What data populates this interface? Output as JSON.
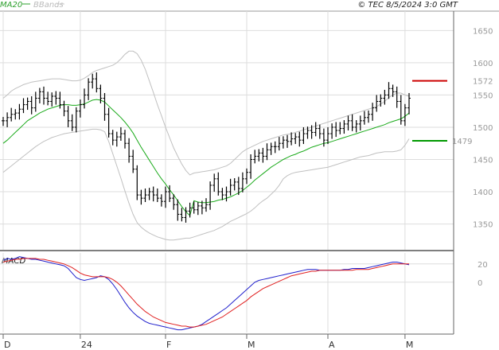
{
  "header": {
    "legend": [
      {
        "label": "MA20",
        "color": "#2ca02c"
      },
      {
        "label": "BBands",
        "color": "#bbbbbb"
      }
    ],
    "copyright": "© TEC 8/5/2024 3:0 GMT"
  },
  "colors": {
    "price": "#000000",
    "ma20": "#1aaa1a",
    "bbands": "#c0c0c0",
    "macd": "#1f1fcc",
    "signal": "#e02020",
    "resistance": "#cc0000",
    "support": "#009900",
    "grid": "#dddddd"
  },
  "chart_data": [
    {
      "type": "ohlc",
      "panel": "price",
      "x_ticks": [
        {
          "label": "D",
          "index": 0
        },
        {
          "label": "24",
          "index": 19
        },
        {
          "label": "F",
          "index": 40
        },
        {
          "label": "M",
          "index": 60
        },
        {
          "label": "A",
          "index": 80
        },
        {
          "label": "M",
          "index": 99
        }
      ],
      "y_ticks": [
        1350,
        1400,
        1450,
        1500,
        1550,
        1600,
        1650
      ],
      "ylim": [
        1310,
        1680
      ],
      "closes": [
        1510,
        1515,
        1520,
        1522,
        1528,
        1535,
        1540,
        1530,
        1545,
        1555,
        1545,
        1540,
        1548,
        1545,
        1535,
        1525,
        1510,
        1500,
        1525,
        1535,
        1550,
        1570,
        1575,
        1560,
        1545,
        1520,
        1490,
        1480,
        1485,
        1490,
        1475,
        1455,
        1435,
        1395,
        1390,
        1395,
        1400,
        1395,
        1390,
        1385,
        1400,
        1390,
        1380,
        1365,
        1360,
        1370,
        1375,
        1372,
        1378,
        1375,
        1380,
        1410,
        1420,
        1400,
        1395,
        1400,
        1410,
        1415,
        1405,
        1420,
        1430,
        1450,
        1455,
        1460,
        1455,
        1465,
        1470,
        1470,
        1475,
        1480,
        1478,
        1482,
        1485,
        1480,
        1490,
        1495,
        1492,
        1498,
        1490,
        1480,
        1490,
        1500,
        1495,
        1498,
        1505,
        1510,
        1500,
        1505,
        1510,
        1515,
        1520,
        1530,
        1540,
        1545,
        1550,
        1560,
        1555,
        1540,
        1510,
        1530,
        1545
      ],
      "ma20": [
        1475,
        1480,
        1486,
        1492,
        1498,
        1504,
        1510,
        1514,
        1518,
        1522,
        1525,
        1528,
        1530,
        1532,
        1534,
        1535,
        1535,
        1534,
        1534,
        1535,
        1536,
        1539,
        1542,
        1543,
        1542,
        1539,
        1533,
        1527,
        1521,
        1515,
        1508,
        1500,
        1491,
        1480,
        1469,
        1459,
        1449,
        1439,
        1429,
        1420,
        1412,
        1403,
        1395,
        1386,
        1377,
        1369,
        1363,
        1386,
        1384,
        1383,
        1383,
        1384,
        1385,
        1387,
        1388,
        1390,
        1392,
        1395,
        1398,
        1402,
        1407,
        1412,
        1418,
        1423,
        1428,
        1433,
        1438,
        1442,
        1446,
        1450,
        1453,
        1456,
        1458,
        1461,
        1463,
        1466,
        1469,
        1471,
        1473,
        1475,
        1476,
        1478,
        1480,
        1482,
        1484,
        1486,
        1488,
        1490,
        1492,
        1494,
        1496,
        1498,
        1500,
        1502,
        1504,
        1507,
        1509,
        1511,
        1513,
        1517,
        1522
      ],
      "bbands_upper": [
        1545,
        1550,
        1556,
        1560,
        1563,
        1566,
        1568,
        1570,
        1571,
        1572,
        1573,
        1574,
        1575,
        1575,
        1575,
        1574,
        1573,
        1572,
        1572,
        1573,
        1576,
        1580,
        1585,
        1588,
        1590,
        1592,
        1594,
        1596,
        1600,
        1606,
        1613,
        1618,
        1618,
        1614,
        1604,
        1590,
        1572,
        1554,
        1535,
        1518,
        1500,
        1484,
        1468,
        1455,
        1443,
        1433,
        1426,
        1429,
        1430,
        1431,
        1432,
        1433,
        1434,
        1436,
        1438,
        1440,
        1444,
        1450,
        1456,
        1462,
        1466,
        1469,
        1472,
        1475,
        1478,
        1480,
        1482,
        1484,
        1486,
        1488,
        1489,
        1490,
        1492,
        1494,
        1496,
        1498,
        1500,
        1502,
        1504,
        1506,
        1508,
        1510,
        1512,
        1514,
        1516,
        1518,
        1520,
        1522,
        1524,
        1526,
        1528,
        1530,
        1532,
        1536,
        1540,
        1546,
        1550,
        1553,
        1553,
        1550,
        1548
      ],
      "bbands_lower": [
        1430,
        1435,
        1440,
        1445,
        1450,
        1455,
        1460,
        1465,
        1470,
        1474,
        1478,
        1481,
        1484,
        1486,
        1488,
        1490,
        1491,
        1492,
        1493,
        1494,
        1495,
        1496,
        1497,
        1497,
        1496,
        1493,
        1478,
        1459,
        1440,
        1421,
        1401,
        1382,
        1365,
        1352,
        1345,
        1340,
        1336,
        1333,
        1330,
        1328,
        1326,
        1325,
        1325,
        1326,
        1327,
        1328,
        1328,
        1330,
        1332,
        1334,
        1336,
        1338,
        1340,
        1343,
        1346,
        1350,
        1354,
        1357,
        1360,
        1363,
        1366,
        1370,
        1375,
        1381,
        1386,
        1390,
        1396,
        1402,
        1410,
        1420,
        1425,
        1428,
        1430,
        1431,
        1432,
        1433,
        1434,
        1435,
        1436,
        1437,
        1438,
        1440,
        1442,
        1444,
        1446,
        1448,
        1450,
        1452,
        1454,
        1455,
        1456,
        1458,
        1460,
        1461,
        1462,
        1462,
        1462,
        1463,
        1465,
        1472,
        1482
      ]
    },
    {
      "type": "line",
      "panel": "macd",
      "title": "MACD",
      "y_ticks": [
        20,
        0
      ],
      "ylim": [
        -55,
        32
      ],
      "series": [
        {
          "values": [
            24,
            26,
            25,
            26,
            28,
            27,
            26,
            25,
            25,
            24,
            23,
            22,
            21,
            20,
            19,
            18,
            15,
            10,
            5,
            3,
            2,
            3,
            4,
            5,
            7,
            6,
            3,
            -2,
            -8,
            -15,
            -22,
            -28,
            -33,
            -37,
            -40,
            -43,
            -45,
            -46,
            -47,
            -48,
            -49,
            -50,
            -51,
            -52,
            -52,
            -51,
            -50,
            -49,
            -48,
            -46,
            -43,
            -40,
            -37,
            -34,
            -31,
            -28,
            -24,
            -20,
            -16,
            -12,
            -8,
            -4,
            0,
            2,
            3,
            4,
            5,
            6,
            7,
            8,
            9,
            10,
            11,
            12,
            13,
            14,
            14,
            14,
            13,
            13,
            13,
            13,
            13,
            13,
            14,
            14,
            15,
            15,
            15,
            15,
            16,
            17,
            18,
            19,
            20,
            21,
            22,
            22,
            21,
            20,
            19
          ]
        },
        {
          "values": [
            22,
            23,
            24,
            25,
            25,
            26,
            26,
            26,
            26,
            25,
            25,
            24,
            23,
            22,
            21,
            20,
            18,
            16,
            13,
            10,
            8,
            7,
            6,
            6,
            6,
            6,
            5,
            3,
            0,
            -4,
            -9,
            -14,
            -19,
            -24,
            -28,
            -32,
            -35,
            -38,
            -40,
            -42,
            -44,
            -45,
            -46,
            -47,
            -48,
            -48,
            -49,
            -49,
            -48,
            -47,
            -46,
            -44,
            -42,
            -40,
            -38,
            -35,
            -32,
            -29,
            -26,
            -23,
            -20,
            -16,
            -13,
            -10,
            -7,
            -5,
            -3,
            -1,
            1,
            3,
            5,
            7,
            8,
            9,
            10,
            11,
            12,
            12,
            13,
            13,
            13,
            13,
            13,
            13,
            13,
            13,
            13,
            14,
            14,
            14,
            14,
            15,
            16,
            17,
            18,
            19,
            20,
            20,
            20,
            20,
            20
          ]
        }
      ]
    }
  ],
  "levels": [
    {
      "label": "1572",
      "value": 1572,
      "color": "#cc0000"
    },
    {
      "label": "1479",
      "value": 1479,
      "color": "#009900"
    }
  ]
}
